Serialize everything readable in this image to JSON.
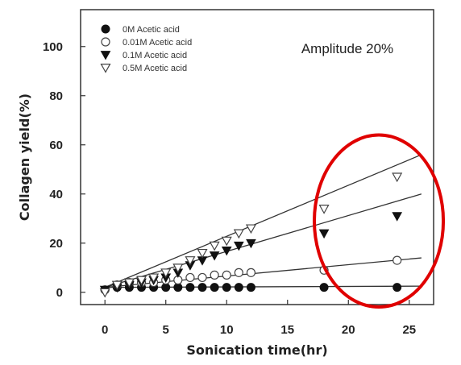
{
  "chart_data": {
    "type": "scatter",
    "title": "",
    "xlabel": "Sonication time(hr)",
    "ylabel": "Collagen yield(%)",
    "xlim": [
      -2,
      27
    ],
    "ylim": [
      -5,
      115
    ],
    "xticks": [
      0,
      5,
      10,
      15,
      20,
      25
    ],
    "yticks": [
      0,
      20,
      40,
      60,
      80,
      100
    ],
    "grid": false,
    "legend_position": "top-left",
    "annotation": "Amplitude 20%",
    "highlight": {
      "shape": "circle",
      "color": "#e00000",
      "center": [
        22.5,
        29
      ],
      "radius_x": 5.3,
      "radius_y": 35
    },
    "series": [
      {
        "name": "0M Acetic acid",
        "marker": "filled-circle",
        "x": [
          0,
          1,
          2,
          3,
          4,
          5,
          6,
          7,
          8,
          9,
          10,
          11,
          12,
          18,
          24
        ],
        "y": [
          1,
          2,
          2,
          2,
          2,
          2,
          2,
          2,
          2,
          2,
          2,
          2,
          2,
          2,
          2
        ],
        "fit": {
          "x": [
            0,
            26
          ],
          "y": [
            2,
            2.5
          ]
        }
      },
      {
        "name": "0.01M Acetic acid",
        "marker": "open-circle",
        "x": [
          0,
          1,
          2,
          3,
          4,
          5,
          6,
          7,
          8,
          9,
          10,
          11,
          12,
          18,
          24
        ],
        "y": [
          1,
          3,
          4,
          4,
          4,
          5,
          5,
          6,
          6,
          7,
          7,
          8,
          8,
          9,
          13
        ],
        "fit": {
          "x": [
            0,
            26
          ],
          "y": [
            2,
            14
          ]
        }
      },
      {
        "name": "0.1M Acetic acid",
        "marker": "filled-triangle-down",
        "x": [
          0,
          1,
          2,
          3,
          4,
          5,
          6,
          7,
          8,
          9,
          10,
          11,
          12,
          18,
          24
        ],
        "y": [
          1,
          2,
          3,
          4,
          5,
          6,
          8,
          11,
          13,
          15,
          17,
          19,
          20,
          24,
          31
        ],
        "fit": {
          "x": [
            0,
            26
          ],
          "y": [
            2,
            40
          ]
        }
      },
      {
        "name": "0.5M Acetic acid",
        "marker": "open-triangle-down",
        "x": [
          0,
          1,
          2,
          3,
          4,
          5,
          6,
          7,
          8,
          9,
          10,
          11,
          12,
          18,
          24
        ],
        "y": [
          0,
          3,
          4,
          5,
          6,
          8,
          10,
          13,
          16,
          19,
          21,
          24,
          26,
          34,
          47
        ],
        "fit": {
          "x": [
            0,
            26
          ],
          "y": [
            2,
            56
          ]
        }
      }
    ]
  }
}
